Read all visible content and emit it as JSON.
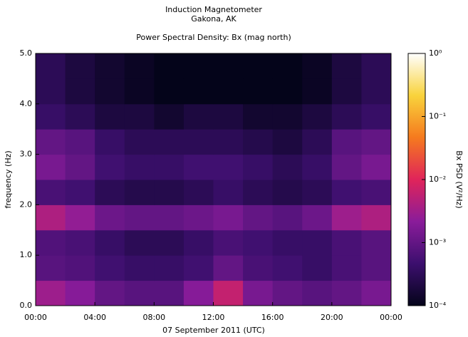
{
  "chart_data": {
    "type": "heatmap",
    "title": "Induction Magnetometer",
    "subtitle": "Gakona, AK",
    "plot_title": "Power Spectral Density: Bx (mag north)",
    "x_label": "07 September 2011 (UTC)",
    "y_label": "frequency (Hz)",
    "colorbar_label": "Bx PSD (V²/Hz)",
    "xlim": [
      0,
      24
    ],
    "xticks": [
      {
        "value": 0,
        "label": "00:00"
      },
      {
        "value": 4,
        "label": "04:00"
      },
      {
        "value": 8,
        "label": "08:00"
      },
      {
        "value": 12,
        "label": "12:00"
      },
      {
        "value": 16,
        "label": "16:00"
      },
      {
        "value": 20,
        "label": "20:00"
      },
      {
        "value": 24,
        "label": "00:00"
      }
    ],
    "ylim": [
      0,
      5
    ],
    "yticks": [
      {
        "value": 0,
        "label": "0.0"
      },
      {
        "value": 1,
        "label": "1.0"
      },
      {
        "value": 2,
        "label": "2.0"
      },
      {
        "value": 3,
        "label": "3.0"
      },
      {
        "value": 4,
        "label": "4.0"
      },
      {
        "value": 5,
        "label": "5.0"
      }
    ],
    "x_bins": [
      0,
      2,
      4,
      6,
      8,
      10,
      12,
      14,
      16,
      18,
      20,
      22,
      24
    ],
    "y_bins": [
      0,
      0.5,
      1,
      1.5,
      2,
      2.5,
      3,
      3.5,
      4,
      4.5,
      5
    ],
    "clim": [
      0.0001,
      1
    ],
    "color_scale": "log",
    "cticks": [
      {
        "value": 0.0001,
        "label": "10⁻⁴"
      },
      {
        "value": 0.001,
        "label": "10⁻³"
      },
      {
        "value": 0.01,
        "label": "10⁻²"
      },
      {
        "value": 0.1,
        "label": "10⁻¹"
      },
      {
        "value": 1,
        "label": "10⁰"
      }
    ],
    "colormap": [
      "#04041a",
      "#3c0f6e",
      "#8a1c9a",
      "#e0245a",
      "#f57a1e",
      "#f9d33c",
      "#ffffff"
    ],
    "values": [
      [
        0.003,
        0.002,
        0.001,
        0.0008,
        0.0008,
        0.002,
        0.006,
        0.0015,
        0.001,
        0.0008,
        0.001,
        0.0015
      ],
      [
        0.0008,
        0.0007,
        0.0005,
        0.0004,
        0.0004,
        0.0005,
        0.001,
        0.0006,
        0.0005,
        0.0004,
        0.0006,
        0.0008
      ],
      [
        0.0007,
        0.0006,
        0.0004,
        0.0003,
        0.0003,
        0.0004,
        0.0006,
        0.0005,
        0.0004,
        0.0004,
        0.0006,
        0.0008
      ],
      [
        0.004,
        0.0025,
        0.0012,
        0.001,
        0.001,
        0.0012,
        0.0015,
        0.001,
        0.0008,
        0.0012,
        0.003,
        0.004
      ],
      [
        0.0006,
        0.0005,
        0.0003,
        0.00025,
        0.00025,
        0.0003,
        0.0004,
        0.0003,
        0.00025,
        0.0003,
        0.0005,
        0.0006
      ],
      [
        0.0015,
        0.001,
        0.0005,
        0.0004,
        0.0004,
        0.0005,
        0.0005,
        0.0004,
        0.0003,
        0.0004,
        0.001,
        0.0015
      ],
      [
        0.001,
        0.0008,
        0.0004,
        0.0003,
        0.0003,
        0.0003,
        0.0003,
        0.00025,
        0.0002,
        0.0003,
        0.0008,
        0.001
      ],
      [
        0.0004,
        0.0003,
        0.0002,
        0.0002,
        0.00015,
        0.0002,
        0.0002,
        0.00015,
        0.00015,
        0.0002,
        0.0003,
        0.0004
      ],
      [
        0.0003,
        0.0002,
        0.00015,
        0.00012,
        0.0001,
        0.0001,
        0.0001,
        0.0001,
        0.0001,
        0.00012,
        0.0002,
        0.0003
      ],
      [
        0.0003,
        0.0002,
        0.00015,
        0.00012,
        0.0001,
        0.0001,
        0.0001,
        0.0001,
        0.0001,
        0.00012,
        0.0002,
        0.0003
      ]
    ]
  }
}
